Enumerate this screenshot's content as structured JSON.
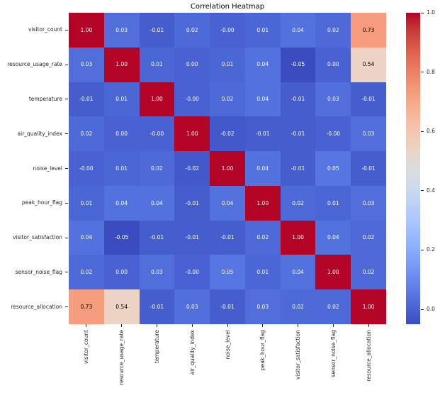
{
  "chart_data": {
    "type": "heatmap",
    "title": "Correlation Heatmap",
    "x_labels": [
      "visitor_count",
      "resource_usage_rate",
      "temperature",
      "air_quality_index",
      "noise_level",
      "peak_hour_flag",
      "visitor_satisfaction",
      "sensor_noise_flag",
      "resource_allocation"
    ],
    "y_labels": [
      "visitor_count",
      "resource_usage_rate",
      "temperature",
      "air_quality_index",
      "noise_level",
      "peak_hour_flag",
      "visitor_satisfaction",
      "sensor_noise_flag",
      "resource_allocation"
    ],
    "values_display": [
      [
        "1.00",
        "0.03",
        "-0.01",
        "0.02",
        "-0.00",
        "0.01",
        "0.04",
        "0.02",
        "0.73"
      ],
      [
        "0.03",
        "1.00",
        "0.01",
        "0.00",
        "0.01",
        "0.04",
        "-0.05",
        "0.00",
        "0.54"
      ],
      [
        "-0.01",
        "0.01",
        "1.00",
        "-0.00",
        "0.02",
        "0.04",
        "-0.01",
        "0.03",
        "-0.01"
      ],
      [
        "0.02",
        "0.00",
        "-0.00",
        "1.00",
        "-0.02",
        "-0.01",
        "-0.01",
        "-0.00",
        "0.03"
      ],
      [
        "-0.00",
        "0.01",
        "0.02",
        "-0.02",
        "1.00",
        "0.04",
        "-0.01",
        "0.05",
        "-0.01"
      ],
      [
        "0.01",
        "0.04",
        "0.04",
        "-0.01",
        "0.04",
        "1.00",
        "0.02",
        "0.01",
        "0.03"
      ],
      [
        "0.04",
        "-0.05",
        "-0.01",
        "-0.01",
        "-0.01",
        "0.02",
        "1.00",
        "0.04",
        "0.02"
      ],
      [
        "0.02",
        "0.00",
        "0.03",
        "-0.00",
        "0.05",
        "0.01",
        "0.04",
        "1.00",
        "0.02"
      ],
      [
        "0.73",
        "0.54",
        "-0.01",
        "0.03",
        "-0.01",
        "0.03",
        "0.02",
        "0.02",
        "1.00"
      ]
    ],
    "colormap": "coolwarm",
    "vmin": -0.05,
    "vmax": 1.0,
    "colorbar_ticks": [
      1.0,
      0.8,
      0.6,
      0.4,
      0.2,
      0.0
    ],
    "colorbar_tick_labels": [
      "1.0",
      "0.8",
      "0.6",
      "0.4",
      "0.2",
      "0.0"
    ],
    "accent_colors": {
      "max_red": "#b40426",
      "min_blue": "#3b4cc0",
      "mid": "#dddddd"
    },
    "grid": false,
    "legend_position": "right-colorbar"
  }
}
